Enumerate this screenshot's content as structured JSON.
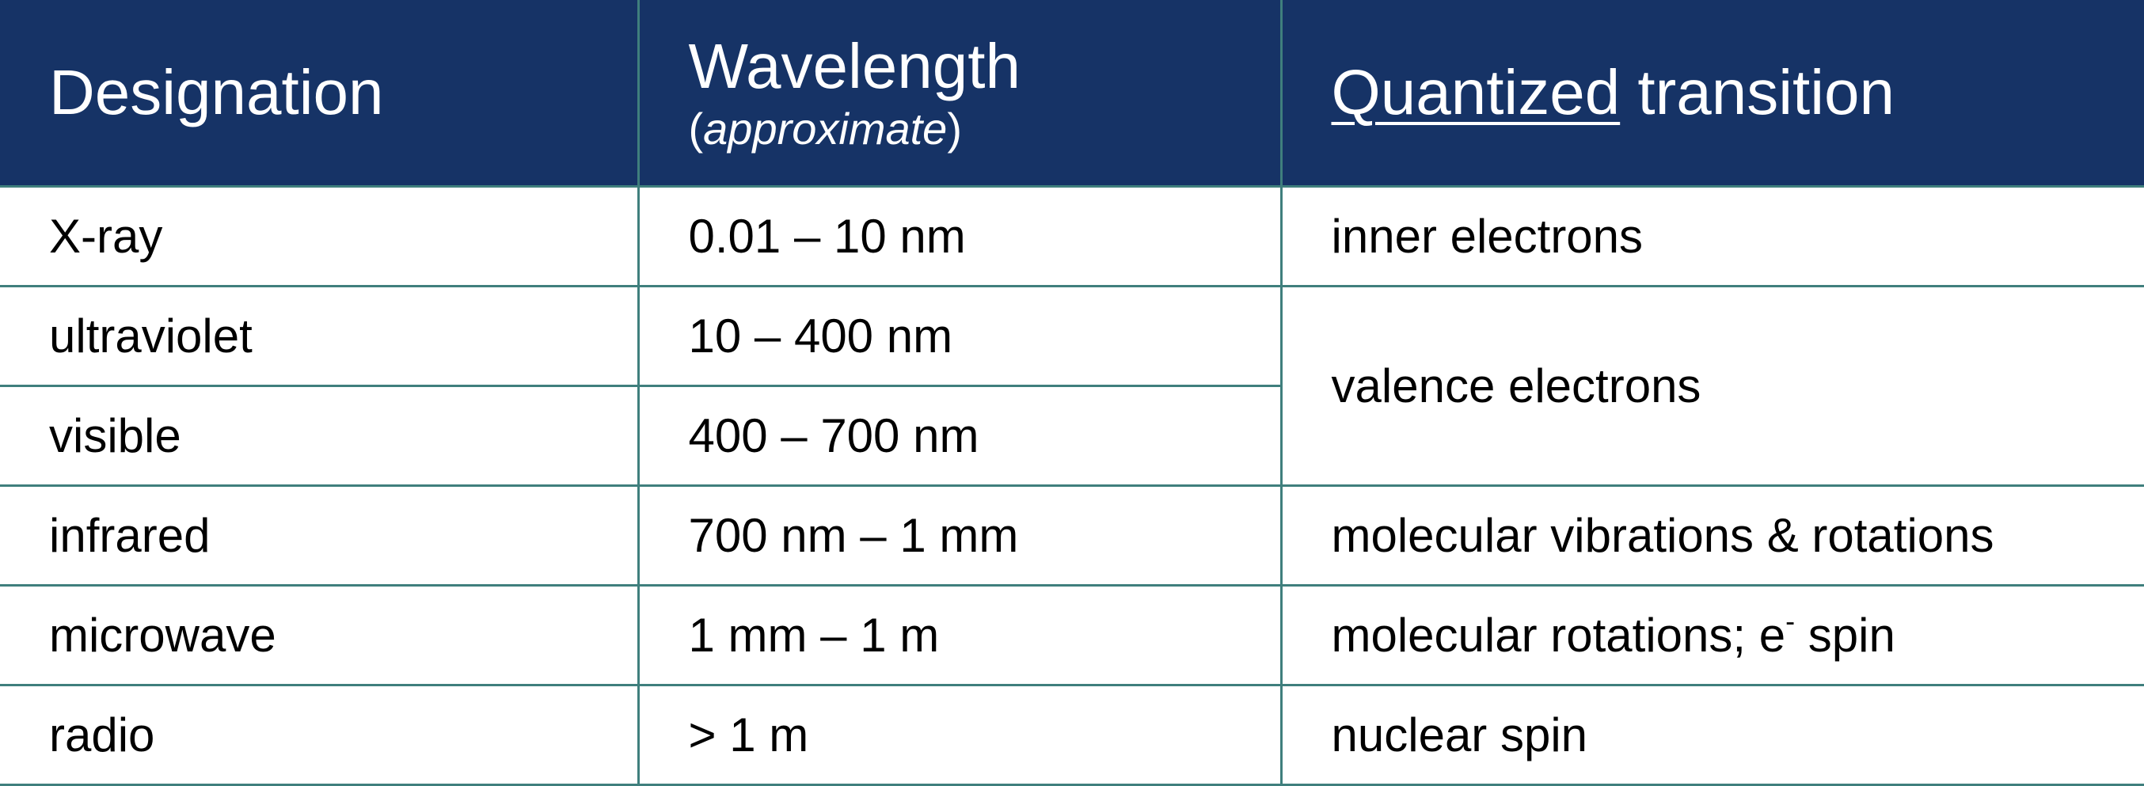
{
  "header": {
    "designation": "Designation",
    "wavelength": "Wavelength",
    "wavelength_open_paren": "(",
    "wavelength_note": "approximate",
    "wavelength_close_paren": ")",
    "transition_underlined": "Quantized",
    "transition_rest": " transition"
  },
  "rows": [
    {
      "designation": "X-ray",
      "wavelength": "0.01 – 10 nm",
      "transition": "inner electrons"
    },
    {
      "designation": "ultraviolet",
      "wavelength": "10 – 400 nm",
      "transition": "valence electrons"
    },
    {
      "designation": "visible",
      "wavelength": "400 – 700 nm"
    },
    {
      "designation": "infrared",
      "wavelength": "700 nm – 1 mm",
      "transition": "molecular vibrations & rotations"
    },
    {
      "designation": "microwave",
      "wavelength": "1 mm – 1 m",
      "transition_pre": "molecular rotations; e",
      "transition_sup": "-",
      "transition_post": " spin"
    },
    {
      "designation": "radio",
      "wavelength": "> 1 m",
      "transition": "nuclear spin"
    }
  ],
  "colors": {
    "header_bg": "#163366",
    "header_text": "#ffffff",
    "grid_line": "#3f7f7d",
    "body_text": "#000000"
  }
}
